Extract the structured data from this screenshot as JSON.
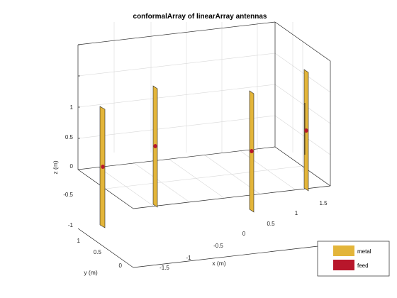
{
  "figure": {
    "title": "conformalArray of linearArray antennas",
    "xlabel": "x (m)",
    "ylabel": "y (m)",
    "zlabel": "z (m)",
    "x_ticks": [
      "-1.5",
      "-1",
      "-0.5",
      "0",
      "0.5",
      "1",
      "1.5"
    ],
    "y_ticks": [
      "0",
      "0.5",
      "1"
    ],
    "z_ticks": [
      "-1",
      "-0.5",
      "0",
      "0.5",
      "1"
    ]
  },
  "legend": {
    "items": [
      {
        "label": "metal",
        "color": "#e3b53a"
      },
      {
        "label": "feed",
        "color": "#b8162b"
      }
    ]
  },
  "colors": {
    "metal": "#e3b53a",
    "feed": "#b8162b",
    "edge": "#262626"
  }
}
